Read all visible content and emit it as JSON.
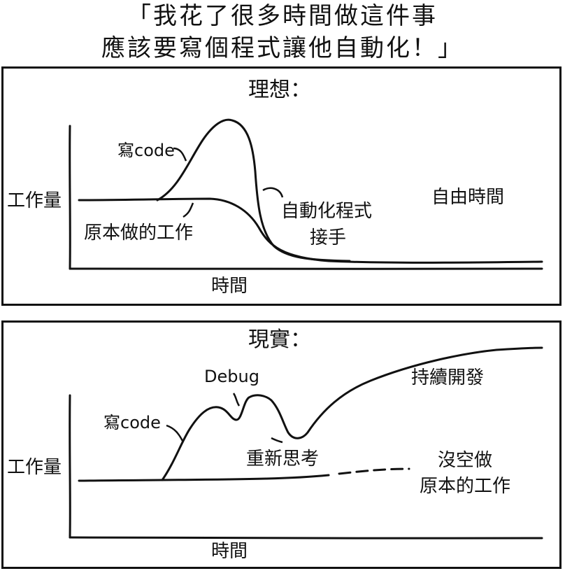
{
  "caption": {
    "line1": "「我花了很多時間做這件事",
    "line2": "應該要寫個程式讓他自動化！」"
  },
  "panel_ideal": {
    "title": "理想：",
    "y_label": "工作量",
    "x_label": "時間",
    "annotations": {
      "write_code": "寫code",
      "original_work": "原本做的工作",
      "automation_line1": "自動化程式",
      "automation_line2": "接手",
      "free_time": "自由時間"
    }
  },
  "panel_real": {
    "title": "現實：",
    "y_label": "工作量",
    "x_label": "時間",
    "annotations": {
      "write_code": "寫code",
      "debug": "Debug",
      "rethink": "重新思考",
      "continued_dev": "持續開發",
      "no_time_line1": "沒空做",
      "no_time_line2": "原本的工作"
    }
  }
}
